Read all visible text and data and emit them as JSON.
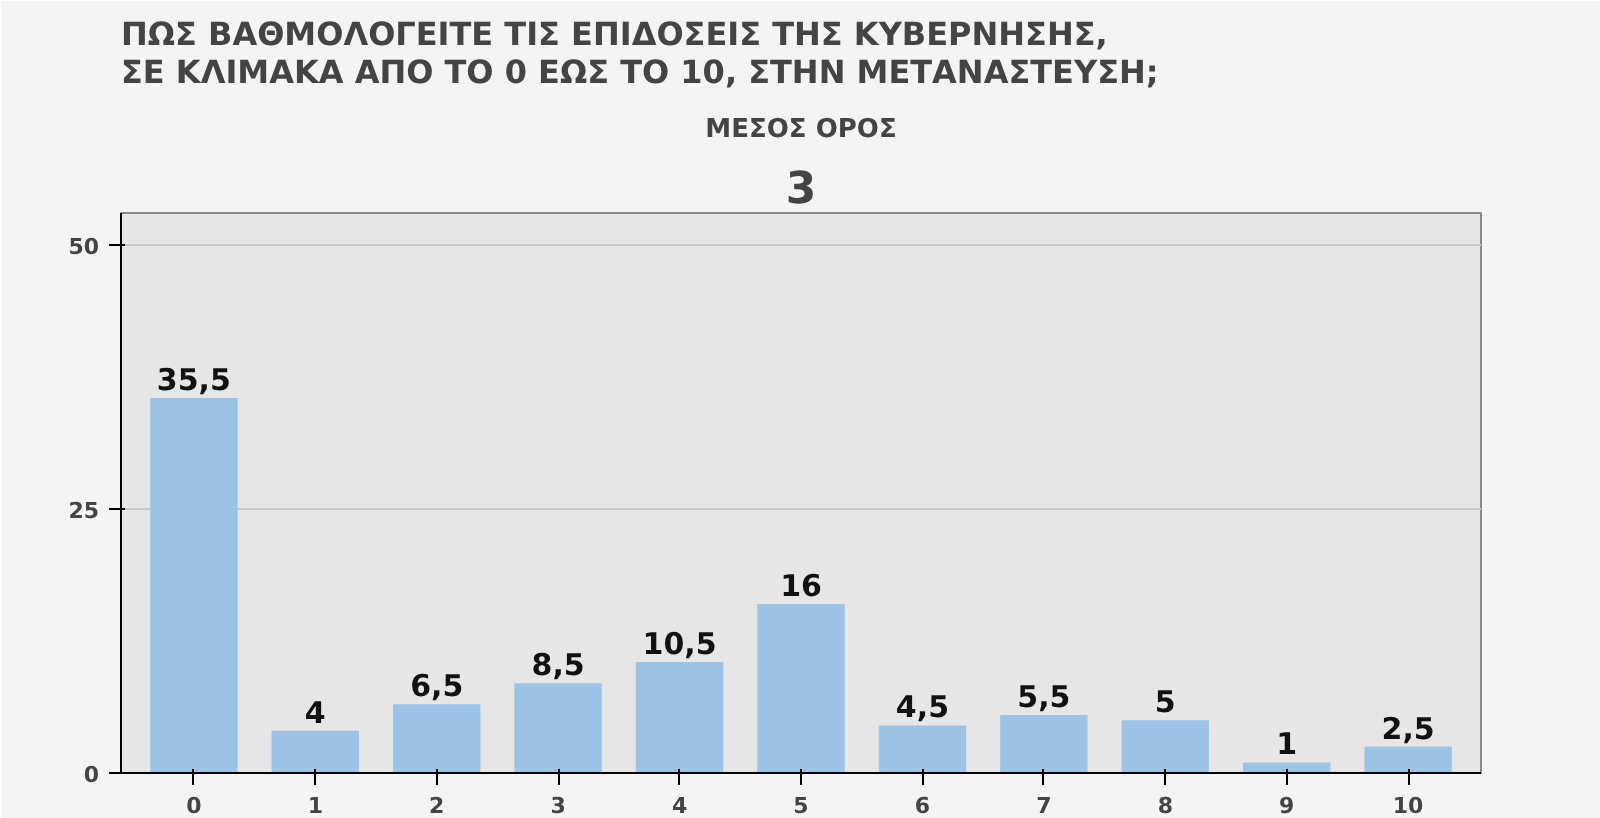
{
  "chart_data": {
    "type": "bar",
    "title": "ΠΩΣ ΒΑΘΜΟΛΟΓΕΙΤΕ ΤΙΣ ΕΠΙΔΟΣΕΙΣ ΤΗΣ ΚΥΒΕΡΝΗΣΗΣ,\nΣΕ ΚΛΙΜΑΚΑ ΑΠΟ ΤΟ 0 ΕΩΣ ΤΟ 10, ΣΤΗΝ ΜΕΤΑΝΑΣΤΕΥΣΗ;",
    "subtitle": "ΜΕΣΟΣ ΟΡΟΣ",
    "annotations": [
      "3"
    ],
    "categories": [
      "0",
      "1",
      "2",
      "3",
      "4",
      "5",
      "6",
      "7",
      "8",
      "9",
      "10"
    ],
    "values": [
      35.5,
      4,
      6.5,
      8.5,
      10.5,
      16,
      4.5,
      5.5,
      5,
      1,
      2.5
    ],
    "value_labels": [
      "35,5",
      "4",
      "6,5",
      "8,5",
      "10,5",
      "16",
      "4,5",
      "5,5",
      "5",
      "1",
      "2,5"
    ],
    "color": "#9cc3e6",
    "ylim": [
      0,
      53
    ],
    "yticks": [
      0,
      25,
      50
    ],
    "grid": "y"
  }
}
